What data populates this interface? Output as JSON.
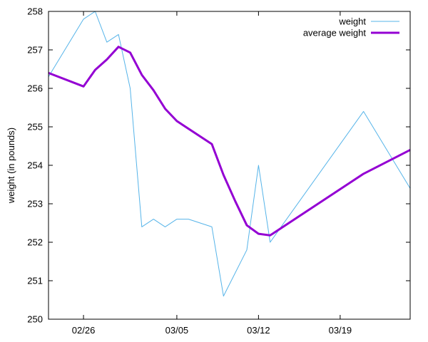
{
  "chart_data": {
    "type": "line",
    "title": "",
    "xlabel": "",
    "ylabel": "weight (in pounds)",
    "ylim": [
      250,
      258
    ],
    "xlim": [
      "2024-02-23",
      "2024-03-25"
    ],
    "x_ticks": [
      {
        "date": "2024-02-26",
        "label": "02/26"
      },
      {
        "date": "2024-03-05",
        "label": "03/05"
      },
      {
        "date": "2024-03-12",
        "label": "03/12"
      },
      {
        "date": "2024-03-19",
        "label": "03/19"
      }
    ],
    "y_ticks": [
      "250",
      "251",
      "252",
      "253",
      "254",
      "255",
      "256",
      "257",
      "258"
    ],
    "legend_position": "top-right",
    "series": [
      {
        "name": "weight",
        "color": "#56b4e9",
        "style": "thin",
        "x": [
          "2024-02-23",
          "2024-02-26",
          "2024-02-27",
          "2024-02-28",
          "2024-02-29",
          "2024-03-01",
          "2024-03-02",
          "2024-03-03",
          "2024-03-04",
          "2024-03-05",
          "2024-03-06",
          "2024-03-08",
          "2024-03-09",
          "2024-03-11",
          "2024-03-12",
          "2024-03-13",
          "2024-03-21",
          "2024-03-25"
        ],
        "values": [
          256.3,
          257.8,
          258.0,
          257.2,
          257.4,
          256.0,
          252.4,
          252.6,
          252.4,
          252.6,
          252.6,
          252.4,
          250.6,
          251.8,
          254.0,
          252.0,
          255.4,
          253.4
        ]
      },
      {
        "name": "average weight",
        "color": "#9400d3",
        "style": "thick",
        "x": [
          "2024-02-23",
          "2024-02-26",
          "2024-02-27",
          "2024-02-28",
          "2024-02-29",
          "2024-03-01",
          "2024-03-02",
          "2024-03-03",
          "2024-03-04",
          "2024-03-05",
          "2024-03-08",
          "2024-03-09",
          "2024-03-10",
          "2024-03-11",
          "2024-03-12",
          "2024-03-13",
          "2024-03-21",
          "2024-03-25"
        ],
        "values": [
          256.4,
          256.05,
          256.48,
          256.75,
          257.08,
          256.93,
          256.35,
          255.95,
          255.47,
          255.15,
          254.55,
          253.75,
          253.07,
          252.44,
          252.22,
          252.18,
          253.78,
          254.4
        ]
      }
    ]
  }
}
